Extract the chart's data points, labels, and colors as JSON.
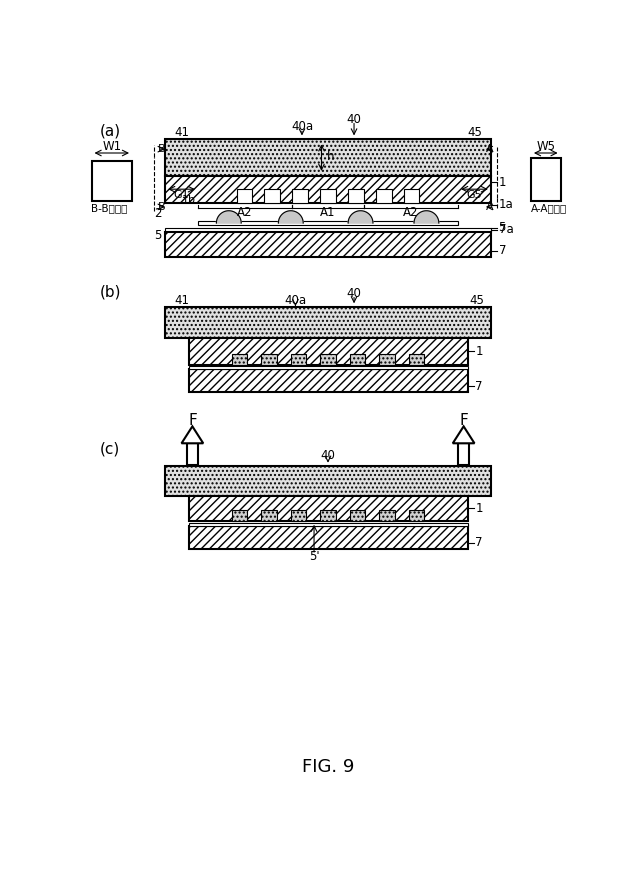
{
  "fig_width": 6.4,
  "fig_height": 8.9,
  "bg_color": "#ffffff",
  "title": "FIG. 9",
  "panel_a_label": "(a)",
  "panel_b_label": "(b)",
  "panel_c_label": "(c)"
}
